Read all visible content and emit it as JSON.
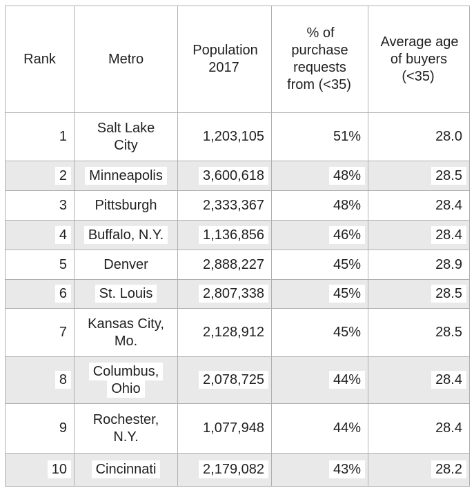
{
  "chart_data": {
    "type": "table",
    "title": "",
    "legend": "none",
    "grid": "full-borders",
    "shaded_row_color": "#e9e9e9",
    "border_color": "#b0b0b0",
    "text_color": "#1f1f1f",
    "highlight_color": "#ffffff",
    "columns": [
      {
        "key": "rank",
        "label": "Rank",
        "display": "Rank",
        "align": "right"
      },
      {
        "key": "metro",
        "label": "Metro",
        "display": "Metro",
        "align": "center"
      },
      {
        "key": "population",
        "label": "Population 2017",
        "display": "Population\n2017",
        "align": "right"
      },
      {
        "key": "pct",
        "label": "% of purchase requests from (<35)",
        "display": "% of\npurchase\nrequests\nfrom (<35)",
        "align": "right"
      },
      {
        "key": "avg_age",
        "label": "Average age of buyers (<35)",
        "display": "Average age\nof buyers\n(<35)",
        "align": "right"
      }
    ],
    "rows": [
      {
        "rank": "1",
        "metro": "Salt Lake City",
        "metro_display": "Salt Lake\nCity",
        "population": "1,203,105",
        "pct": "51%",
        "avg_age": "28.0",
        "shaded": false
      },
      {
        "rank": "2",
        "metro": "Minneapolis",
        "metro_display": "Minneapolis",
        "population": "3,600,618",
        "pct": "48%",
        "avg_age": "28.5",
        "shaded": true
      },
      {
        "rank": "3",
        "metro": "Pittsburgh",
        "metro_display": "Pittsburgh",
        "population": "2,333,367",
        "pct": "48%",
        "avg_age": "28.4",
        "shaded": false
      },
      {
        "rank": "4",
        "metro": "Buffalo, N.Y.",
        "metro_display": "Buffalo, N.Y.",
        "population": "1,136,856",
        "pct": "46%",
        "avg_age": "28.4",
        "shaded": true
      },
      {
        "rank": "5",
        "metro": "Denver",
        "metro_display": "Denver",
        "population": "2,888,227",
        "pct": "45%",
        "avg_age": "28.9",
        "shaded": false
      },
      {
        "rank": "6",
        "metro": "St. Louis",
        "metro_display": "St. Louis",
        "population": "2,807,338",
        "pct": "45%",
        "avg_age": "28.5",
        "shaded": true
      },
      {
        "rank": "7",
        "metro": "Kansas City, Mo.",
        "metro_display": "Kansas City,\nMo.",
        "population": "2,128,912",
        "pct": "45%",
        "avg_age": "28.5",
        "shaded": false
      },
      {
        "rank": "8",
        "metro": "Columbus, Ohio",
        "metro_display": "Columbus,\nOhio",
        "population": "2,078,725",
        "pct": "44%",
        "avg_age": "28.4",
        "shaded": true
      },
      {
        "rank": "9",
        "metro": "Rochester, N.Y.",
        "metro_display": "Rochester,\nN.Y.",
        "population": "1,077,948",
        "pct": "44%",
        "avg_age": "28.4",
        "shaded": false
      },
      {
        "rank": "10",
        "metro": "Cincinnati",
        "metro_display": "Cincinnati",
        "population": "2,179,082",
        "pct": "43%",
        "avg_age": "28.2",
        "shaded": true
      }
    ]
  }
}
